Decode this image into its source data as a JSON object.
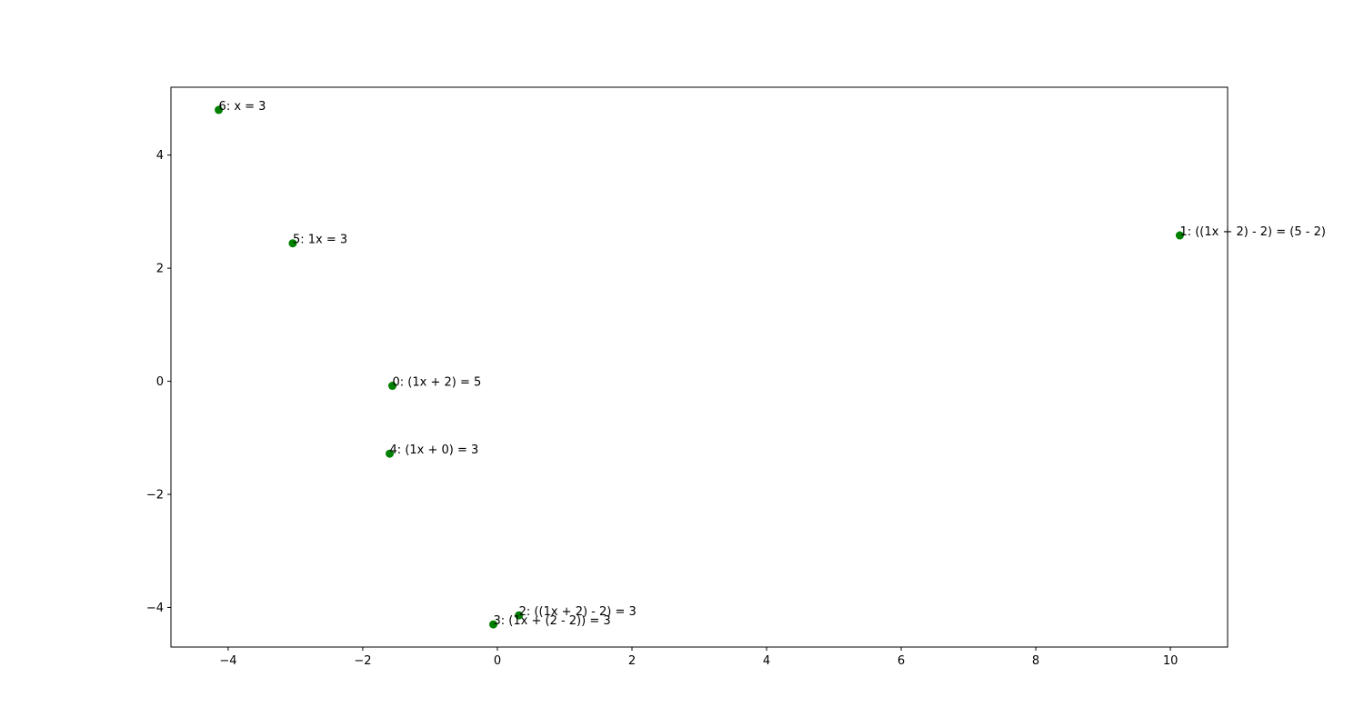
{
  "chart_data": {
    "type": "scatter",
    "title": "",
    "xlabel": "",
    "ylabel": "",
    "xlim": [
      -4.85,
      10.85
    ],
    "ylim": [
      -4.7,
      5.2
    ],
    "xticks": [
      -4,
      -2,
      0,
      2,
      4,
      6,
      8,
      10
    ],
    "yticks": [
      -4,
      -2,
      0,
      2,
      4
    ],
    "xtick_labels": [
      "−4",
      "−2",
      "0",
      "2",
      "4",
      "6",
      "8",
      "10"
    ],
    "ytick_labels": [
      "−4",
      "−2",
      "0",
      "2",
      "4"
    ],
    "grid": false,
    "legend": "none",
    "marker_color": "#008000",
    "points": [
      {
        "x": -1.56,
        "y": -0.08,
        "label": "0: (1x + 2) = 5"
      },
      {
        "x": 10.14,
        "y": 2.58,
        "label": "1: ((1x + 2) - 2) = (5 - 2)"
      },
      {
        "x": 0.32,
        "y": -4.14,
        "label": "2: ((1x + 2) - 2) = 3"
      },
      {
        "x": -0.06,
        "y": -4.3,
        "label": "3: (1x + (2 - 2)) = 3"
      },
      {
        "x": -1.6,
        "y": -1.28,
        "label": "4: (1x + 0) = 3"
      },
      {
        "x": -3.04,
        "y": 2.44,
        "label": "5: 1x = 3"
      },
      {
        "x": -4.14,
        "y": 4.8,
        "label": "6: x = 3"
      }
    ]
  }
}
